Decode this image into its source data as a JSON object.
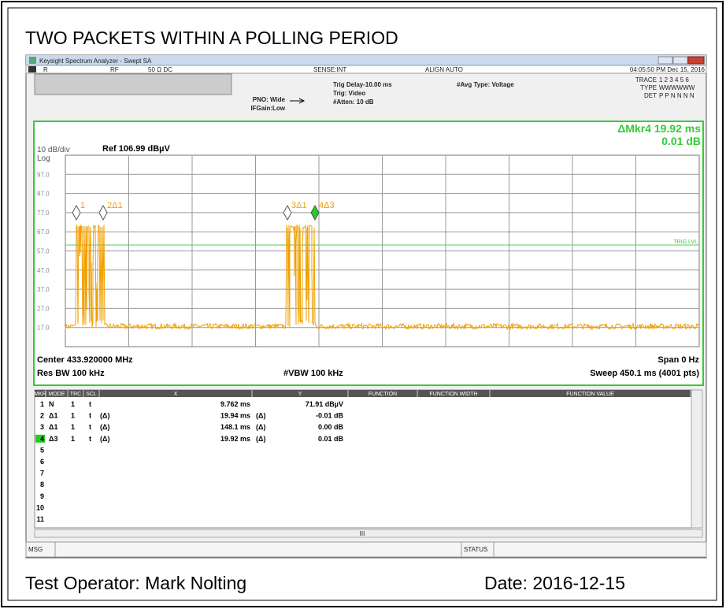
{
  "title": "TWO PACKETS WITHIN A POLLING PERIOD",
  "window": {
    "title": "Keysight Spectrum Analyzer - Swept SA"
  },
  "status_bar": {
    "mode": "R",
    "input": "RF",
    "impedance": "50 Ω  DC",
    "sense": "SENSE:INT",
    "align": "ALIGN AUTO",
    "datetime": "04:05:50 PM Dec 15, 2016"
  },
  "settings": {
    "pno": "PNO: Wide",
    "ifgain": "IFGain:Low",
    "trig_delay": "Trig Delay-10.00 ms",
    "trig": "Trig: Video",
    "atten": "#Atten: 10 dB",
    "avg_type": "#Avg Type: Voltage"
  },
  "trace_panel": {
    "trace_label": "TRACE",
    "trace_values": "1 2 3 4 5 6",
    "type_label": "TYPE",
    "type_values": "WWWWWW",
    "det_label": "DET",
    "det_values": "P P N N N N"
  },
  "graph": {
    "marker_readout": "ΔMkr4 19.92 ms",
    "marker_delta": "0.01 dB",
    "scale": "10 dB/div",
    "log": "Log",
    "ref": "Ref 106.99 dBµV",
    "y_labels": [
      "97.0",
      "87.0",
      "77.0",
      "67.0",
      "57.0",
      "47.0",
      "37.0",
      "27.0",
      "17.0"
    ],
    "markers": [
      "1",
      "2Δ1",
      "3Δ1",
      "4Δ3"
    ],
    "trig_level": "TRIG LVL",
    "center": "Center 433.920000 MHz",
    "span": "Span 0 Hz",
    "res_bw": "Res BW 100 kHz",
    "vbw": "#VBW 100 kHz",
    "sweep": "Sweep  450.1 ms (4001 pts)"
  },
  "table": {
    "headers": [
      "MKR",
      "MODE",
      "TRC",
      "SCL",
      "X",
      "Y",
      "FUNCTION",
      "FUNCTION WIDTH",
      "FUNCTION VALUE"
    ],
    "rows": [
      {
        "num": "1",
        "mode": "N",
        "trc": "1",
        "scl": "t",
        "x": "9.762 ms",
        "y": "71.91 dBµV"
      },
      {
        "num": "2",
        "mode": "Δ1",
        "trc": "1",
        "scl": "t",
        "fn": "(Δ)",
        "x": "19.94 ms",
        "ymode": "(Δ)",
        "y": "-0.01 dB"
      },
      {
        "num": "3",
        "mode": "Δ1",
        "trc": "1",
        "scl": "t",
        "fn": "(Δ)",
        "x": "148.1 ms",
        "ymode": "(Δ)",
        "y": "0.00 dB"
      },
      {
        "num": "4",
        "mode": "Δ3",
        "trc": "1",
        "scl": "t",
        "fn": "(Δ)",
        "x": "19.92 ms",
        "ymode": "(Δ)",
        "y": "0.01 dB"
      },
      {
        "num": "5"
      },
      {
        "num": "6"
      },
      {
        "num": "7"
      },
      {
        "num": "8"
      },
      {
        "num": "9"
      },
      {
        "num": "10"
      },
      {
        "num": "11"
      }
    ],
    "scroll_mark": "III"
  },
  "bottom_bar": {
    "msg": "MSG",
    "status": "STATUS"
  },
  "footer": {
    "operator": "Test Operator:  Mark Nolting",
    "date": "Date:  2016-12-15"
  }
}
